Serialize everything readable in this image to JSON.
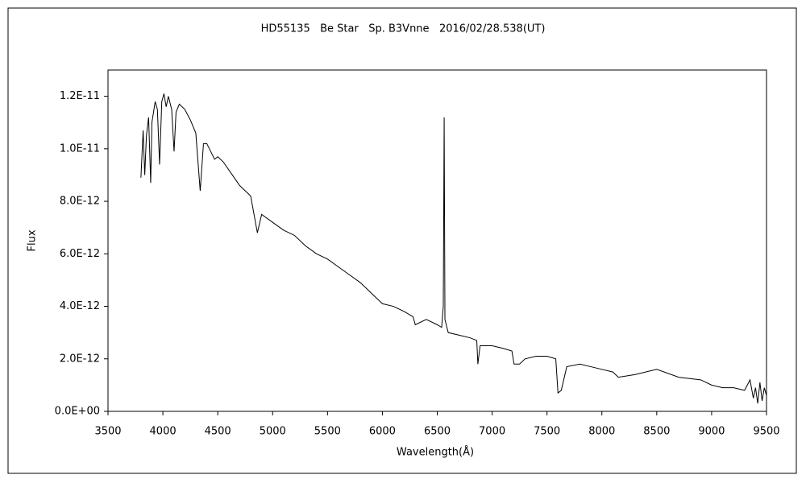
{
  "chart_data": {
    "type": "line",
    "title": "HD55135   Be Star   Sp. B3Vnne   2016/02/28.538(UT)",
    "x_label": "Wavelength(Å)",
    "y_label": "Flux",
    "xlim": [
      3500,
      9500
    ],
    "xticks": [
      3500,
      4000,
      4500,
      5000,
      5500,
      6000,
      6500,
      7000,
      7500,
      8000,
      8500,
      9000,
      9500
    ],
    "ylim": [
      0,
      1.3e-11
    ],
    "yticks": [
      {
        "value": 0,
        "label": "0.0E+00"
      },
      {
        "value": 2e-12,
        "label": "2.0E-12"
      },
      {
        "value": 4e-12,
        "label": "4.0E-12"
      },
      {
        "value": 6e-12,
        "label": "6.0E-12"
      },
      {
        "value": 8e-12,
        "label": "8.0E-12"
      },
      {
        "value": 1e-11,
        "label": "1.0E-11"
      },
      {
        "value": 1.2e-11,
        "label": "1.2E-11"
      }
    ],
    "grid": false,
    "series": [
      {
        "name": "Flux",
        "color": "#000000",
        "x": [
          3800,
          3820,
          3835,
          3850,
          3870,
          3889,
          3900,
          3930,
          3950,
          3970,
          3990,
          4010,
          4030,
          4050,
          4080,
          4102,
          4120,
          4150,
          4200,
          4250,
          4300,
          4340,
          4370,
          4400,
          4471,
          4500,
          4550,
          4600,
          4650,
          4700,
          4800,
          4861,
          4900,
          5000,
          5100,
          5200,
          5300,
          5400,
          5500,
          5600,
          5700,
          5800,
          5900,
          6000,
          6100,
          6200,
          6280,
          6300,
          6400,
          6500,
          6540,
          6555,
          6563,
          6570,
          6600,
          6700,
          6800,
          6860,
          6870,
          6890,
          7000,
          7100,
          7180,
          7200,
          7250,
          7300,
          7400,
          7500,
          7580,
          7600,
          7630,
          7680,
          7800,
          7900,
          8000,
          8100,
          8150,
          8300,
          8500,
          8700,
          8900,
          9000,
          9100,
          9200,
          9300,
          9350,
          9380,
          9400,
          9420,
          9440,
          9460,
          9480,
          9500
        ],
        "values": [
          8.9e-12,
          1.07e-11,
          9e-12,
          1.05e-11,
          1.12e-11,
          8.7e-12,
          1.1e-11,
          1.18e-11,
          1.15e-11,
          9.4e-12,
          1.18e-11,
          1.21e-11,
          1.16e-11,
          1.2e-11,
          1.15e-11,
          9.9e-12,
          1.14e-11,
          1.17e-11,
          1.15e-11,
          1.11e-11,
          1.06e-11,
          8.4e-12,
          1.02e-11,
          1.02e-11,
          9.6e-12,
          9.7e-12,
          9.5e-12,
          9.2e-12,
          8.9e-12,
          8.6e-12,
          8.2e-12,
          6.8e-12,
          7.5e-12,
          7.2e-12,
          6.9e-12,
          6.7e-12,
          6.3e-12,
          6e-12,
          5.8e-12,
          5.5e-12,
          5.2e-12,
          4.9e-12,
          4.5e-12,
          4.1e-12,
          4e-12,
          3.8e-12,
          3.6e-12,
          3.3e-12,
          3.5e-12,
          3.3e-12,
          3.2e-12,
          4e-12,
          1.12e-11,
          3.5e-12,
          3e-12,
          2.9e-12,
          2.8e-12,
          2.7e-12,
          1.8e-12,
          2.5e-12,
          2.5e-12,
          2.4e-12,
          2.3e-12,
          1.8e-12,
          1.8e-12,
          2e-12,
          2.1e-12,
          2.1e-12,
          2e-12,
          7e-13,
          8e-13,
          1.7e-12,
          1.8e-12,
          1.7e-12,
          1.6e-12,
          1.5e-12,
          1.3e-12,
          1.4e-12,
          1.6e-12,
          1.3e-12,
          1.2e-12,
          1e-12,
          9e-13,
          9e-13,
          8e-13,
          1.2e-12,
          5e-13,
          9e-13,
          3e-13,
          1.1e-12,
          4e-13,
          9e-13,
          6e-13
        ]
      }
    ]
  }
}
